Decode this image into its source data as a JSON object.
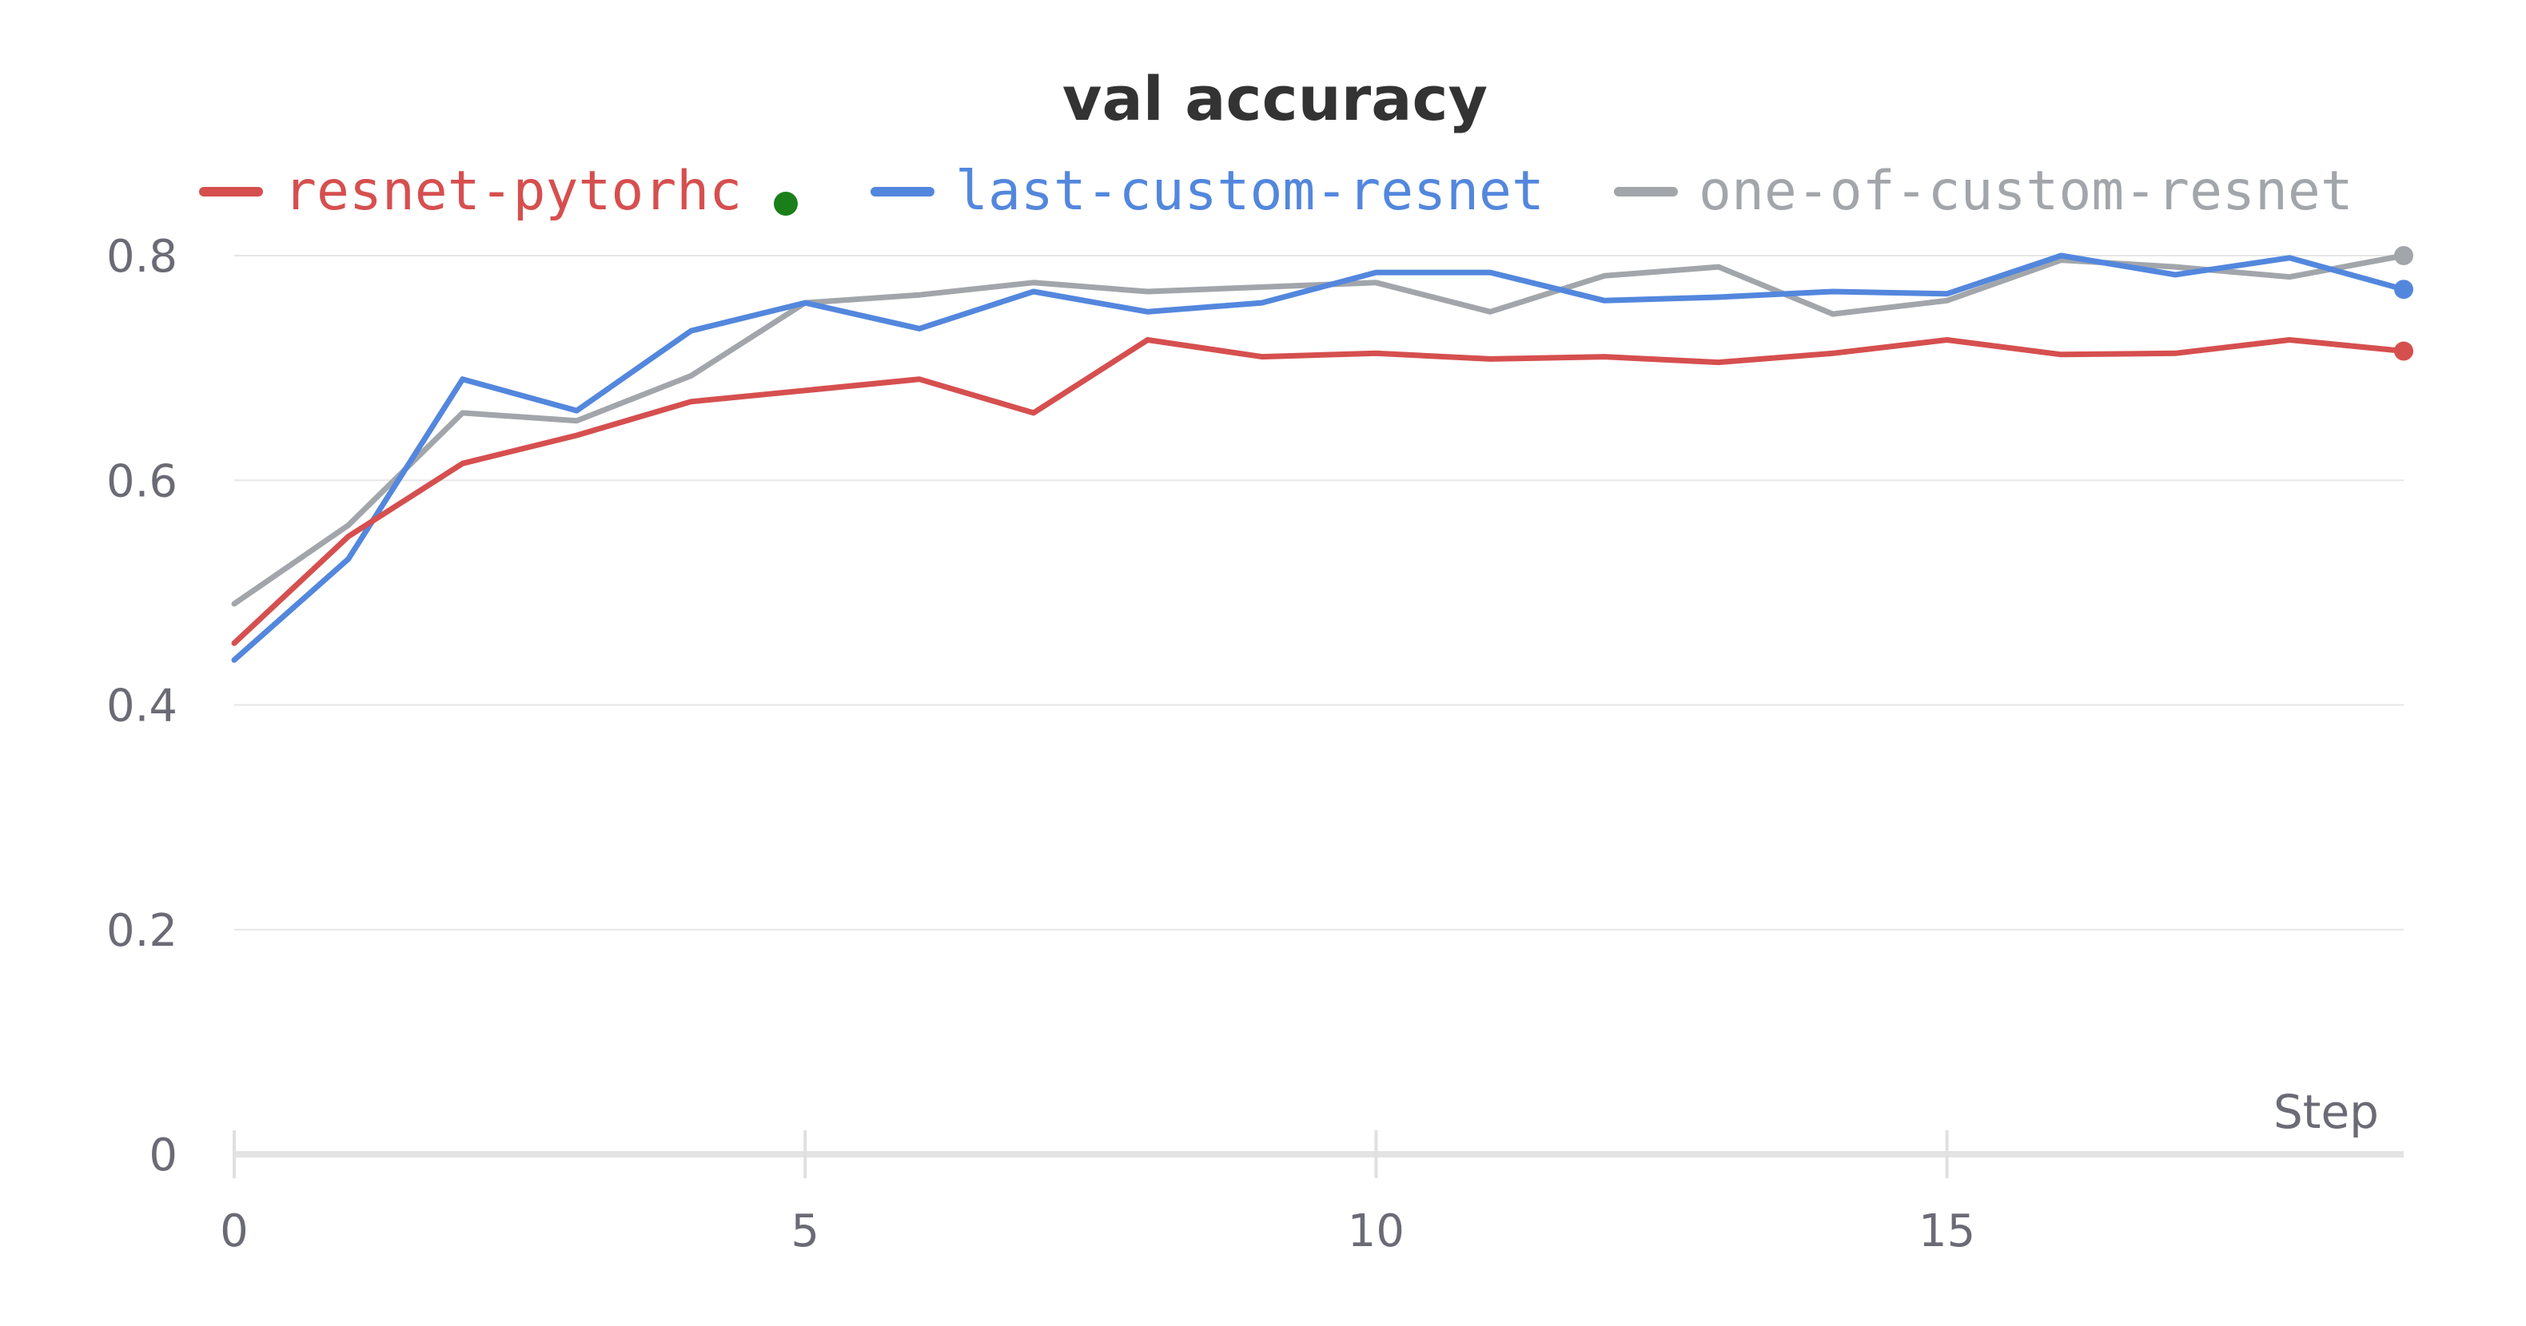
{
  "chart_data": {
    "type": "line",
    "title": "val accuracy",
    "xlabel": "Step",
    "ylabel": "",
    "xlim": [
      0,
      19
    ],
    "ylim": [
      0,
      0.8
    ],
    "x_ticks": [
      0,
      5,
      10,
      15
    ],
    "y_ticks": [
      0,
      0.2,
      0.4,
      0.6,
      0.8
    ],
    "x_tick_labels": [
      "0",
      "5",
      "10",
      "15"
    ],
    "y_tick_labels": [
      "0",
      "0.2",
      "0.4",
      "0.6",
      "0.8"
    ],
    "grid": true,
    "legend_position": "top",
    "x": [
      0,
      1,
      2,
      3,
      4,
      5,
      6,
      7,
      8,
      9,
      10,
      11,
      12,
      13,
      14,
      15,
      16,
      17,
      18,
      19
    ],
    "series": [
      {
        "name": "resnet-pytorhc",
        "color": "#d64f4f",
        "marker_color": "#1a7f1a",
        "values": [
          0.455,
          0.55,
          0.615,
          0.64,
          0.67,
          0.68,
          0.69,
          0.66,
          0.725,
          0.71,
          0.713,
          0.708,
          0.71,
          0.705,
          0.713,
          0.725,
          0.712,
          0.713,
          0.725,
          0.715
        ]
      },
      {
        "name": "last-custom-resnet",
        "color": "#5387dd",
        "values": [
          0.44,
          0.53,
          0.69,
          0.662,
          0.733,
          0.758,
          0.735,
          0.768,
          0.75,
          0.758,
          0.785,
          0.785,
          0.76,
          0.763,
          0.768,
          0.766,
          0.8,
          0.783,
          0.798,
          0.77
        ]
      },
      {
        "name": "one-of-custom-resnet",
        "color": "#a2a6ab",
        "values": [
          0.49,
          0.56,
          0.66,
          0.653,
          0.693,
          0.758,
          0.765,
          0.776,
          0.768,
          0.772,
          0.776,
          0.75,
          0.782,
          0.79,
          0.748,
          0.76,
          0.796,
          0.79,
          0.781,
          0.8
        ]
      }
    ]
  }
}
